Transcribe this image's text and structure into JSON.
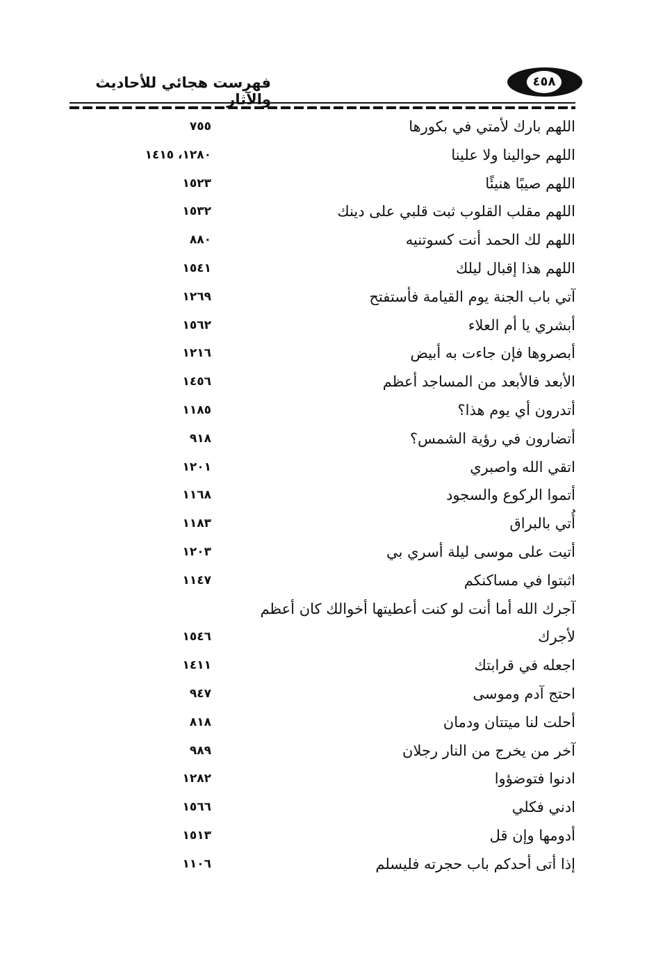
{
  "header": {
    "title": "فهرست هجائي للأحاديث والآثار",
    "page_number": "٤٥٨"
  },
  "entries": [
    {
      "text": "اللهم بارك لأمتي في بكورها",
      "ref": "٧٥٥"
    },
    {
      "text": "اللهم حوالينا ولا علينا",
      "ref": "١٢٨٠، ١٤١٥"
    },
    {
      "text": "اللهم صيبًا هنيئًا",
      "ref": "١٥٢٣"
    },
    {
      "text": "اللهم مقلب القلوب ثبت قلبي على دينك",
      "ref": "١٥٣٢"
    },
    {
      "text": "اللهم لك الحمد أنت كسوتنيه",
      "ref": "٨٨٠"
    },
    {
      "text": "اللهم هذا إقبال ليلك",
      "ref": "١٥٤١"
    },
    {
      "text": "آتي باب الجنة يوم القيامة فأستفتح",
      "ref": "١٢٦٩"
    },
    {
      "text": "أبشري يا أم العلاء",
      "ref": "١٥٦٢"
    },
    {
      "text": "أبصروها فإن جاءت به أبيض",
      "ref": "١٢١٦"
    },
    {
      "text": "الأبعد فالأبعد من المساجد أعظم",
      "ref": "١٤٥٦"
    },
    {
      "text": "أتدرون أي يوم هذا؟",
      "ref": "١١٨٥"
    },
    {
      "text": "أتضارون في رؤية الشمس؟",
      "ref": "٩١٨"
    },
    {
      "text": "اتقي الله واصبري",
      "ref": "١٢٠١"
    },
    {
      "text": "أتموا الركوع والسجود",
      "ref": "١١٦٨"
    },
    {
      "text": "أُتي بالبراق",
      "ref": "١١٨٣"
    },
    {
      "text": "أتيت على موسى ليلة أسري بي",
      "ref": "١٢٠٣"
    },
    {
      "text": "اثبتوا في مساكنكم",
      "ref": "١١٤٧"
    },
    {
      "text": "آجرك الله أما أنت لو كنت أعطيتها أخوالك كان أعظم",
      "ref": ""
    },
    {
      "text": "لأجرك",
      "ref": "١٥٤٦"
    },
    {
      "text": "اجعله في قرابتك",
      "ref": "١٤١١"
    },
    {
      "text": "احتج آدم وموسى",
      "ref": "٩٤٧"
    },
    {
      "text": "أحلت لنا ميتتان ودمان",
      "ref": "٨١٨"
    },
    {
      "text": "آخر من يخرج من النار رجلان",
      "ref": "٩٨٩"
    },
    {
      "text": "ادنوا فتوضؤوا",
      "ref": "١٢٨٢"
    },
    {
      "text": "ادني فكلي",
      "ref": "١٥٦٦"
    },
    {
      "text": "أدومها وإن قل",
      "ref": "١٥١٣"
    },
    {
      "text": "إذا أتى أحدكم باب حجرته فليسلم",
      "ref": "١١٠٦"
    }
  ]
}
